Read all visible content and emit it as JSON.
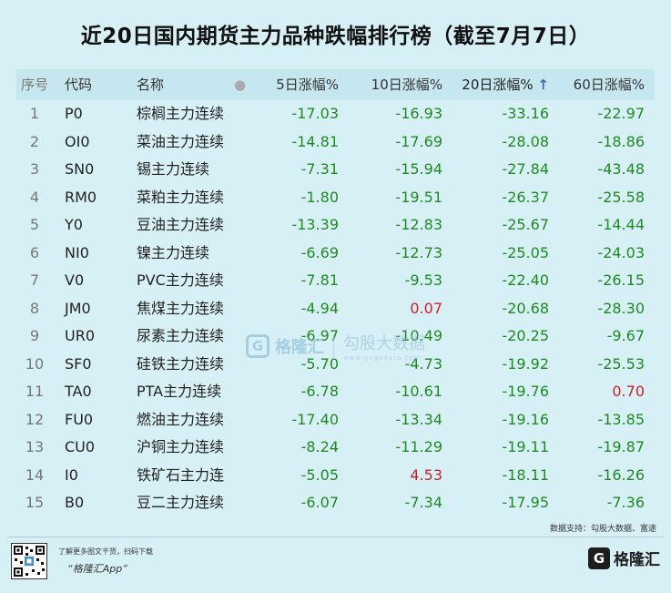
{
  "title": "近20日国内期货主力品种跌幅排行榜（截至7月7日）",
  "table": {
    "headers": {
      "rank": "序号",
      "code": "代码",
      "name": "名称",
      "dot": "●",
      "chg5": "5日涨幅%",
      "chg10": "10日涨幅%",
      "chg20": "20日涨幅%",
      "sort_arrow": "↑",
      "chg60": "60日涨幅%"
    },
    "rows": [
      {
        "rank": "1",
        "code": "P0",
        "name": "棕榈主力连续",
        "chg5": "-17.03",
        "chg10": "-16.93",
        "chg20": "-33.16",
        "chg60": "-22.97"
      },
      {
        "rank": "2",
        "code": "OI0",
        "name": "菜油主力连续",
        "chg5": "-14.81",
        "chg10": "-17.69",
        "chg20": "-28.08",
        "chg60": "-18.86"
      },
      {
        "rank": "3",
        "code": "SN0",
        "name": "锡主力连续",
        "chg5": "-7.31",
        "chg10": "-15.94",
        "chg20": "-27.84",
        "chg60": "-43.48"
      },
      {
        "rank": "4",
        "code": "RM0",
        "name": "菜粕主力连续",
        "chg5": "-1.80",
        "chg10": "-19.51",
        "chg20": "-26.37",
        "chg60": "-25.58"
      },
      {
        "rank": "5",
        "code": "Y0",
        "name": "豆油主力连续",
        "chg5": "-13.39",
        "chg10": "-12.83",
        "chg20": "-25.67",
        "chg60": "-14.44"
      },
      {
        "rank": "6",
        "code": "NI0",
        "name": "镍主力连续",
        "chg5": "-6.69",
        "chg10": "-12.73",
        "chg20": "-25.05",
        "chg60": "-24.03"
      },
      {
        "rank": "7",
        "code": "V0",
        "name": "PVC主力连续",
        "chg5": "-7.81",
        "chg10": "-9.53",
        "chg20": "-22.40",
        "chg60": "-26.15"
      },
      {
        "rank": "8",
        "code": "JM0",
        "name": "焦煤主力连续",
        "chg5": "-4.94",
        "chg10": "0.07",
        "chg20": "-20.68",
        "chg60": "-28.30"
      },
      {
        "rank": "9",
        "code": "UR0",
        "name": "尿素主力连续",
        "chg5": "-6.97",
        "chg10": "-10.49",
        "chg20": "-20.25",
        "chg60": "-9.67"
      },
      {
        "rank": "10",
        "code": "SF0",
        "name": "硅铁主力连续",
        "chg5": "-5.70",
        "chg10": "-4.73",
        "chg20": "-19.92",
        "chg60": "-25.53"
      },
      {
        "rank": "11",
        "code": "TA0",
        "name": "PTA主力连续",
        "chg5": "-6.78",
        "chg10": "-10.61",
        "chg20": "-19.76",
        "chg60": "0.70"
      },
      {
        "rank": "12",
        "code": "FU0",
        "name": "燃油主力连续",
        "chg5": "-17.40",
        "chg10": "-13.34",
        "chg20": "-19.16",
        "chg60": "-13.85"
      },
      {
        "rank": "13",
        "code": "CU0",
        "name": "沪铜主力连续",
        "chg5": "-8.24",
        "chg10": "-11.29",
        "chg20": "-19.11",
        "chg60": "-19.87"
      },
      {
        "rank": "14",
        "code": "I0",
        "name": "铁矿石主力连",
        "chg5": "-5.05",
        "chg10": "4.53",
        "chg20": "-18.11",
        "chg60": "-16.26"
      },
      {
        "rank": "15",
        "code": "B0",
        "name": "豆二主力连续",
        "chg5": "-6.07",
        "chg10": "-7.34",
        "chg20": "-17.95",
        "chg60": "-7.36"
      }
    ]
  },
  "watermark": {
    "brand": "格隆汇",
    "slogan": "勾股大数据",
    "domain": "www.gogudata.com"
  },
  "source": "数据支持：勾股大数据、富途",
  "footer": {
    "scan_text": "了解更多图文干货，扫码下载",
    "app_name": "“格隆汇App”",
    "brand": "格隆汇"
  },
  "colors": {
    "background": "#d7f0f6",
    "header_bg": "#c6e7ef",
    "negative": "#1f8a22",
    "positive": "#d0202a",
    "sort_arrow": "#3a6fb0"
  }
}
